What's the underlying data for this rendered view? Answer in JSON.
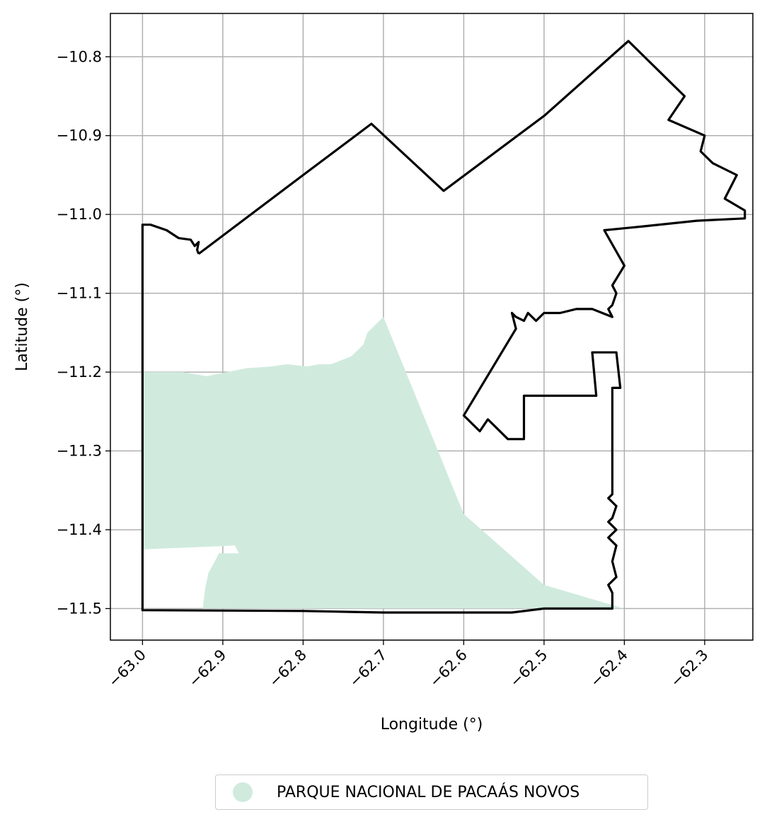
{
  "chart_data": {
    "type": "map",
    "xlabel": "Longitude (°)",
    "ylabel": "Latitude (°)",
    "xlim": [
      -63.04,
      -62.24
    ],
    "ylim": [
      -11.54,
      -10.745
    ],
    "x_ticks": [
      -63.0,
      -62.9,
      -62.8,
      -62.7,
      -62.6,
      -62.5,
      -62.4,
      -62.3
    ],
    "x_tick_labels": [
      "−63.0",
      "−62.9",
      "−62.8",
      "−62.7",
      "−62.6",
      "−62.5",
      "−62.4",
      "−62.3"
    ],
    "y_ticks": [
      -10.8,
      -10.9,
      -11.0,
      -11.1,
      -11.2,
      -11.3,
      -11.4,
      -11.5
    ],
    "y_tick_labels": [
      "−10.8",
      "−10.9",
      "−11.0",
      "−11.1",
      "−11.2",
      "−11.3",
      "−11.4",
      "−11.5"
    ],
    "grid": true,
    "legend_placement": "below",
    "legend": [
      {
        "label": "PARQUE NACIONAL DE PACAÁS NOVOS",
        "color": "#d0ebde"
      }
    ],
    "layers": [
      {
        "name": "PARQUE NACIONAL DE PACAÁS NOVOS",
        "kind": "filled-area",
        "color": "#d0ebde",
        "coordinates": [
          [
            -63.0,
            -11.2
          ],
          [
            -62.98,
            -11.2
          ],
          [
            -62.95,
            -11.2
          ],
          [
            -62.92,
            -11.205
          ],
          [
            -62.895,
            -11.2
          ],
          [
            -62.87,
            -11.195
          ],
          [
            -62.84,
            -11.193
          ],
          [
            -62.82,
            -11.19
          ],
          [
            -62.795,
            -11.193
          ],
          [
            -62.78,
            -11.19
          ],
          [
            -62.765,
            -11.19
          ],
          [
            -62.74,
            -11.18
          ],
          [
            -62.725,
            -11.165
          ],
          [
            -62.72,
            -11.15
          ],
          [
            -62.71,
            -11.14
          ],
          [
            -62.7,
            -11.13
          ],
          [
            -62.6,
            -11.38
          ],
          [
            -62.5,
            -11.47
          ],
          [
            -62.4,
            -11.5
          ],
          [
            -62.5,
            -11.5
          ],
          [
            -62.7,
            -11.5
          ],
          [
            -62.8,
            -11.5
          ],
          [
            -62.9,
            -11.5
          ],
          [
            -62.925,
            -11.5
          ],
          [
            -62.922,
            -11.475
          ],
          [
            -62.918,
            -11.455
          ],
          [
            -62.91,
            -11.44
          ],
          [
            -62.905,
            -11.43
          ],
          [
            -62.88,
            -11.43
          ],
          [
            -62.885,
            -11.42
          ],
          [
            -63.0,
            -11.425
          ]
        ]
      },
      {
        "name": "outline",
        "kind": "boundary-line",
        "color": "#000000",
        "coordinates": [
          [
            -62.93,
            -11.05
          ],
          [
            -62.8,
            -10.95
          ],
          [
            -62.715,
            -10.885
          ],
          [
            -62.625,
            -10.97
          ],
          [
            -62.5,
            -10.875
          ],
          [
            -62.395,
            -10.78
          ],
          [
            -62.325,
            -10.85
          ],
          [
            -62.345,
            -10.88
          ],
          [
            -62.3,
            -10.9
          ],
          [
            -62.305,
            -10.92
          ],
          [
            -62.29,
            -10.935
          ],
          [
            -62.26,
            -10.95
          ],
          [
            -62.275,
            -10.98
          ],
          [
            -62.25,
            -10.995
          ],
          [
            -62.25,
            -11.005
          ],
          [
            -62.31,
            -11.008
          ],
          [
            -62.375,
            -11.015
          ],
          [
            -62.425,
            -11.02
          ],
          [
            -62.4,
            -11.065
          ],
          [
            -62.415,
            -11.09
          ],
          [
            -62.41,
            -11.1
          ],
          [
            -62.415,
            -11.115
          ],
          [
            -62.42,
            -11.12
          ],
          [
            -62.415,
            -11.13
          ],
          [
            -62.44,
            -11.12
          ],
          [
            -62.46,
            -11.12
          ],
          [
            -62.48,
            -11.125
          ],
          [
            -62.5,
            -11.125
          ],
          [
            -62.51,
            -11.135
          ],
          [
            -62.52,
            -11.125
          ],
          [
            -62.525,
            -11.135
          ],
          [
            -62.535,
            -11.13
          ],
          [
            -62.54,
            -11.125
          ],
          [
            -62.535,
            -11.145
          ],
          [
            -62.6,
            -11.255
          ],
          [
            -62.58,
            -11.275
          ],
          [
            -62.57,
            -11.26
          ],
          [
            -62.545,
            -11.285
          ],
          [
            -62.525,
            -11.285
          ],
          [
            -62.525,
            -11.23
          ],
          [
            -62.435,
            -11.23
          ],
          [
            -62.44,
            -11.175
          ],
          [
            -62.41,
            -11.175
          ],
          [
            -62.405,
            -11.22
          ],
          [
            -62.415,
            -11.22
          ],
          [
            -62.415,
            -11.355
          ],
          [
            -62.42,
            -11.36
          ],
          [
            -62.41,
            -11.37
          ],
          [
            -62.415,
            -11.385
          ],
          [
            -62.42,
            -11.39
          ],
          [
            -62.41,
            -11.4
          ],
          [
            -62.42,
            -11.41
          ],
          [
            -62.41,
            -11.42
          ],
          [
            -62.415,
            -11.44
          ],
          [
            -62.41,
            -11.46
          ],
          [
            -62.42,
            -11.47
          ],
          [
            -62.415,
            -11.48
          ],
          [
            -62.415,
            -11.5
          ],
          [
            -62.5,
            -11.5
          ],
          [
            -62.54,
            -11.505
          ],
          [
            -62.7,
            -11.505
          ],
          [
            -62.8,
            -11.503
          ],
          [
            -63.0,
            -11.502
          ],
          [
            -63.0,
            -11.013
          ],
          [
            -62.99,
            -11.013
          ],
          [
            -62.97,
            -11.02
          ],
          [
            -62.955,
            -11.03
          ],
          [
            -62.94,
            -11.032
          ],
          [
            -62.935,
            -11.04
          ],
          [
            -62.93,
            -11.035
          ],
          [
            -62.932,
            -11.045
          ],
          [
            -62.93,
            -11.05
          ]
        ]
      }
    ]
  }
}
